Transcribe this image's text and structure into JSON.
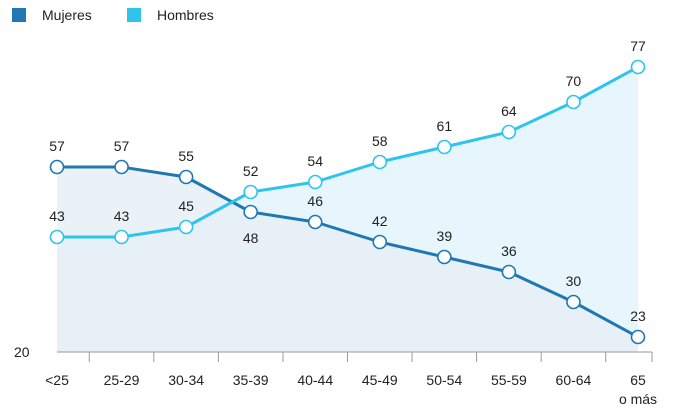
{
  "chart_data": {
    "type": "line",
    "categories": [
      "<25",
      "25-29",
      "30-34",
      "35-39",
      "40-44",
      "45-49",
      "50-54",
      "55-59",
      "60-64",
      "65 o más"
    ],
    "series": [
      {
        "name": "Mujeres",
        "color": "#1f78b4",
        "values": [
          57,
          57,
          55,
          48,
          46,
          42,
          39,
          36,
          30,
          23
        ]
      },
      {
        "name": "Hombres",
        "color": "#2ec4ee",
        "values": [
          43,
          43,
          45,
          52,
          54,
          58,
          61,
          64,
          70,
          77
        ]
      }
    ],
    "y_axis_label": "20",
    "ylim": [
      20,
      80
    ],
    "title": "",
    "xlabel": "",
    "ylabel": "",
    "grid": false,
    "legend": "top-left",
    "fill_under": true
  }
}
